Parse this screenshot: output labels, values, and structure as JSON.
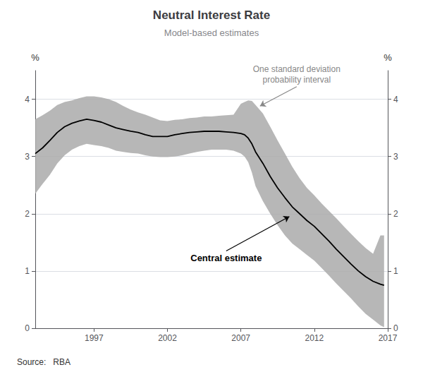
{
  "chart_data": {
    "type": "line",
    "title": "Neutral Interest Rate",
    "subtitle": "Model-based estimates",
    "source": "Source:   RBA",
    "ylabel": "%",
    "y2label": "%",
    "xlim": [
      1993,
      2017
    ],
    "xticks": [
      1997,
      2002,
      2007,
      2012,
      2017
    ],
    "ylim": [
      0,
      4.5
    ],
    "yticks": [
      0,
      1,
      2,
      3,
      4
    ],
    "y2lim": [
      0,
      4.5
    ],
    "y2ticks": [
      0,
      1,
      2,
      3,
      4
    ],
    "grid": "y",
    "x": [
      1993.0,
      1993.5,
      1994.0,
      1994.5,
      1995.0,
      1995.5,
      1996.0,
      1996.5,
      1997.0,
      1997.5,
      1998.0,
      1998.5,
      1999.0,
      1999.5,
      2000.0,
      2000.5,
      2001.0,
      2001.5,
      2002.0,
      2002.5,
      2003.0,
      2003.5,
      2004.0,
      2004.5,
      2005.0,
      2005.5,
      2006.0,
      2006.5,
      2007.0,
      2007.25,
      2007.5,
      2007.75,
      2008.0,
      2008.5,
      2009.0,
      2009.5,
      2010.0,
      2010.5,
      2011.0,
      2011.5,
      2012.0,
      2012.5,
      2013.0,
      2013.5,
      2014.0,
      2014.5,
      2015.0,
      2015.5,
      2016.0,
      2016.5,
      2016.75
    ],
    "series": [
      {
        "type": "band",
        "color": "#aaaaaa",
        "upper": [
          3.65,
          3.72,
          3.8,
          3.9,
          3.95,
          3.98,
          4.02,
          4.05,
          4.05,
          4.03,
          4.0,
          3.95,
          3.88,
          3.82,
          3.77,
          3.73,
          3.68,
          3.63,
          3.62,
          3.64,
          3.65,
          3.67,
          3.68,
          3.7,
          3.7,
          3.71,
          3.72,
          3.73,
          3.92,
          3.95,
          3.98,
          3.97,
          3.9,
          3.75,
          3.52,
          3.28,
          3.05,
          2.82,
          2.62,
          2.45,
          2.32,
          2.18,
          2.05,
          1.92,
          1.78,
          1.65,
          1.52,
          1.4,
          1.3,
          1.62,
          1.62
        ],
        "lower": [
          2.35,
          2.52,
          2.68,
          2.88,
          3.02,
          3.12,
          3.18,
          3.22,
          3.2,
          3.18,
          3.15,
          3.1,
          3.08,
          3.06,
          3.05,
          3.02,
          3.0,
          2.99,
          2.99,
          3.0,
          3.02,
          3.05,
          3.08,
          3.1,
          3.12,
          3.12,
          3.12,
          3.1,
          3.05,
          3.0,
          2.9,
          2.72,
          2.48,
          2.22,
          2.0,
          1.8,
          1.62,
          1.48,
          1.38,
          1.28,
          1.18,
          1.05,
          0.92,
          0.78,
          0.65,
          0.52,
          0.38,
          0.25,
          0.15,
          0.05,
          0.02
        ]
      },
      {
        "type": "line",
        "color": "#000000",
        "values": [
          3.05,
          3.15,
          3.28,
          3.42,
          3.52,
          3.58,
          3.62,
          3.65,
          3.63,
          3.6,
          3.55,
          3.5,
          3.47,
          3.44,
          3.42,
          3.38,
          3.35,
          3.35,
          3.35,
          3.38,
          3.4,
          3.42,
          3.43,
          3.44,
          3.44,
          3.44,
          3.43,
          3.42,
          3.4,
          3.38,
          3.32,
          3.22,
          3.08,
          2.88,
          2.65,
          2.45,
          2.28,
          2.12,
          2.0,
          1.88,
          1.78,
          1.65,
          1.52,
          1.38,
          1.25,
          1.12,
          1.0,
          0.9,
          0.82,
          0.77,
          0.75
        ]
      }
    ],
    "annotations": [
      {
        "text": "One standard deviation\nprobability interval",
        "x": 2010.8,
        "y": 4.22,
        "arrow_to": [
          2008.3,
          3.88
        ]
      },
      {
        "text": "Central estimate",
        "x": 2006.0,
        "y": 1.35,
        "arrow_to": [
          2010.3,
          1.95
        ]
      }
    ]
  }
}
